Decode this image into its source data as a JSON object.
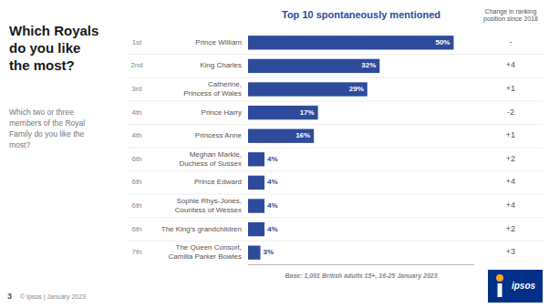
{
  "chart_data": {
    "type": "bar",
    "orientation": "horizontal",
    "title": "Top 10 spontaneously mentioned",
    "heading": "Which Royals\ndo you like\nthe most?",
    "subtitle": "Which two or three\nmembers of the Royal\nFamily do you like the\nmost?",
    "change_header": "Change in ranking\nposition since 2018",
    "categories": [
      "Prince William",
      "King Charles",
      "Catherine,\nPrincess of Wales",
      "Prince Harry",
      "Princess Anne",
      "Meghan Markle,\nDuchess of Sussex",
      "Prince Edward",
      "Sophie Rhys-Jones,\nCountess of Wessex",
      "The King's grandchildren",
      "The Queen Consort,\nCamilla Parker Bowles"
    ],
    "values": [
      50,
      32,
      29,
      17,
      16,
      4,
      4,
      4,
      4,
      3
    ],
    "value_labels": [
      "50%",
      "32%",
      "29%",
      "17%",
      "16%",
      "4%",
      "4%",
      "4%",
      "4%",
      "3%"
    ],
    "data_labels": true,
    "color": "#2E4B9B",
    "xlim": [
      0,
      55
    ],
    "tick_labels": false,
    "ranks": [
      "1st",
      "2nd",
      "3rd",
      "4th",
      "4th",
      "6th",
      "6th",
      "6th",
      "6th",
      "7th"
    ],
    "changes": [
      "-",
      "+4",
      "+1",
      "-2",
      "+1",
      "+2",
      "+4",
      "+4",
      "+2",
      "+3"
    ],
    "note": "Base: 1,001 British adults 15+, 16-25 January 2023",
    "footer": "© Ipsos | January 2023",
    "page_number": "3",
    "logo": "ipsos"
  }
}
